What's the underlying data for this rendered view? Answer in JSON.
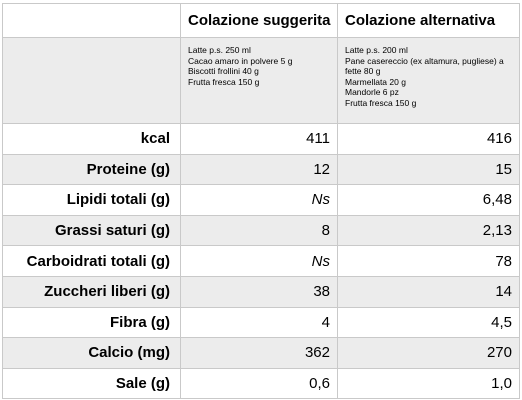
{
  "columns": [
    "",
    "Colazione suggerita",
    "Colazione alternativa"
  ],
  "descriptions": {
    "suggested": [
      "Latte p.s. 250 ml",
      "Cacao amaro in polvere 5 g",
      "Biscotti frollini 40 g",
      "Frutta fresca 150 g"
    ],
    "alternative": [
      "Latte p.s. 200 ml",
      "Pane casereccio (ex altamura, pugliese) a fette 80 g",
      "Marmellata 20 g",
      "Mandorle 6 pz",
      "Frutta fresca 150 g"
    ]
  },
  "rows": [
    {
      "label": "kcal",
      "suggested": "411",
      "alternative": "416"
    },
    {
      "label": "Proteine (g)",
      "suggested": "12",
      "alternative": "15"
    },
    {
      "label": "Lipidi totali (g)",
      "suggested": "Ns",
      "alternative": "6,48"
    },
    {
      "label": "Grassi saturi (g)",
      "suggested": "8",
      "alternative": "2,13"
    },
    {
      "label": "Carboidrati totali (g)",
      "suggested": "Ns",
      "alternative": "78"
    },
    {
      "label": "Zuccheri liberi (g)",
      "suggested": "38",
      "alternative": "14"
    },
    {
      "label": "Fibra (g)",
      "suggested": "4",
      "alternative": "4,5"
    },
    {
      "label": "Calcio (mg)",
      "suggested": "362",
      "alternative": "270"
    },
    {
      "label": "Sale (g)",
      "suggested": "0,6",
      "alternative": "1,0"
    }
  ]
}
